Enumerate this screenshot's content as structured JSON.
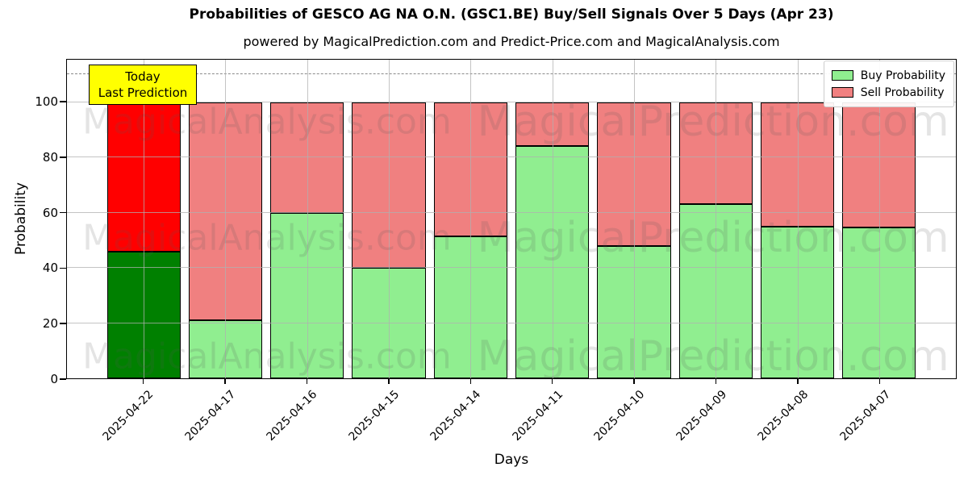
{
  "title": "Probabilities of GESCO AG NA O.N. (GSC1.BE) Buy/Sell Signals Over 5 Days (Apr 23)",
  "subtitle": "powered by MagicalPrediction.com and Predict-Price.com and MagicalAnalysis.com",
  "annotation": {
    "line1": "Today",
    "line2": "Last Prediction",
    "background": "#ffff00"
  },
  "legend": {
    "items": [
      {
        "label": "Buy Probability",
        "color": "#90EE90"
      },
      {
        "label": "Sell Probability",
        "color": "#F08080"
      }
    ]
  },
  "watermarks": {
    "left": "MagicalAnalysis.com",
    "right": "MagicalPrediction.com"
  },
  "chart_data": {
    "type": "bar",
    "stacked": true,
    "xlabel": "Days",
    "ylabel": "Probability",
    "categories": [
      "2025-04-22",
      "2025-04-17",
      "2025-04-16",
      "2025-04-15",
      "2025-04-14",
      "2025-04-11",
      "2025-04-10",
      "2025-04-09",
      "2025-04-08",
      "2025-04-07"
    ],
    "series": [
      {
        "name": "Buy Probability",
        "color": "#90EE90",
        "values": [
          46,
          21,
          60,
          40,
          51.5,
          84,
          48,
          63,
          55,
          54.5
        ]
      },
      {
        "name": "Sell Probability",
        "color": "#F08080",
        "values": [
          54,
          79,
          40,
          60,
          48.5,
          16,
          52,
          37,
          45,
          45.5
        ]
      }
    ],
    "today_bar_colors": {
      "buy": "#008000",
      "sell": "#FF0000"
    },
    "bar_edge_color": "#000000",
    "yticks": [
      0,
      20,
      40,
      60,
      80,
      100
    ],
    "ylim": [
      0,
      115.4
    ],
    "xlim": [
      -0.94,
      9.94
    ],
    "bar_width": 0.9,
    "dashed_line_y": 110,
    "grid": true,
    "legend_position": "upper right"
  }
}
